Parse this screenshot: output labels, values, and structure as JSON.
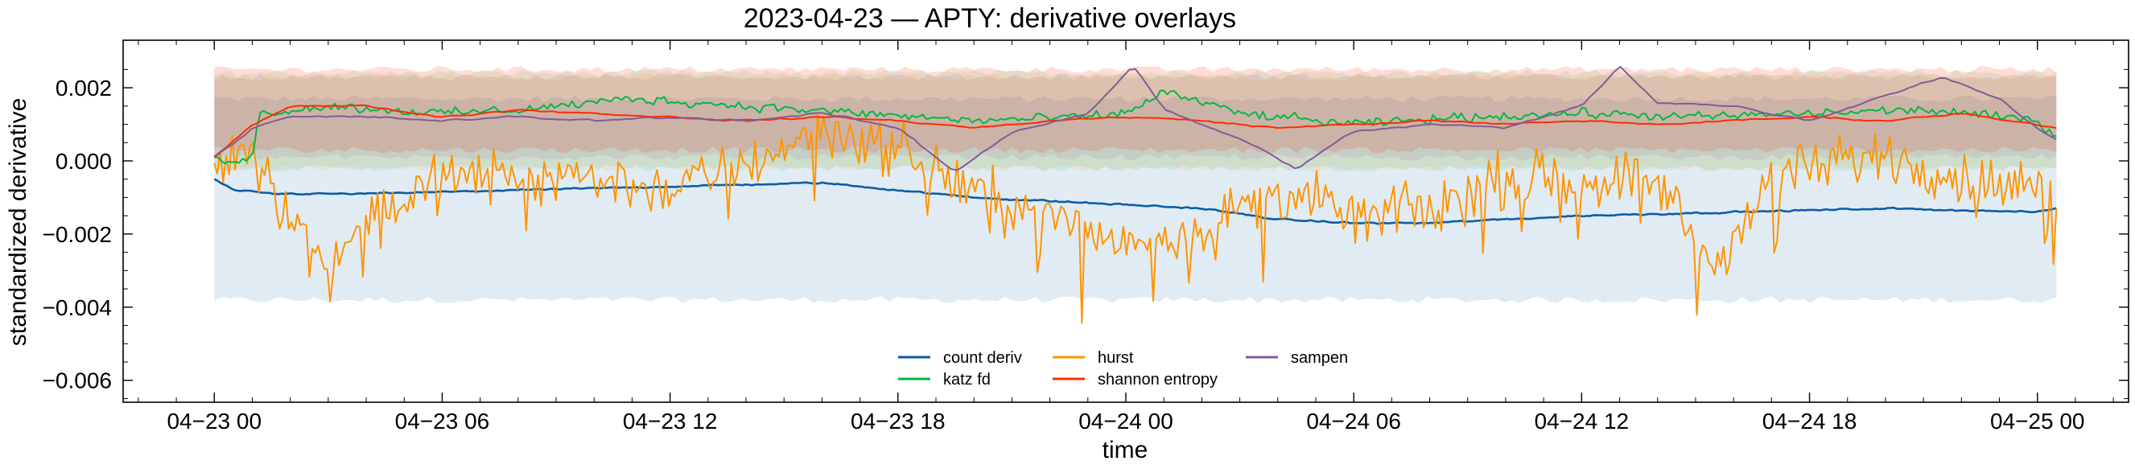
{
  "chart_data": {
    "type": "line",
    "title": "2023-04-23 — APTY: derivative overlays",
    "xlabel": "time",
    "ylabel": "standardized derivative",
    "x_ticks": [
      "04−23 00",
      "04−23 06",
      "04−23 12",
      "04−23 18",
      "04−24 00",
      "04−24 06",
      "04−24 12",
      "04−24 18",
      "04−25 00"
    ],
    "x_range_hours": [
      -2.4,
      50.4
    ],
    "ylim": [
      -0.0066,
      0.0033
    ],
    "y_ticks": [
      {
        "value": 0.002,
        "label": "0.002"
      },
      {
        "value": 0.0,
        "label": "0.000"
      },
      {
        "value": -0.002,
        "label": "−0.002"
      },
      {
        "value": -0.004,
        "label": "−0.004"
      },
      {
        "value": -0.006,
        "label": "−0.006"
      }
    ],
    "legend_position": "lower-center",
    "series": [
      {
        "name": "count deriv",
        "color": "#0C5DA5",
        "band": [
          -0.0038,
          0.0017
        ],
        "anchors": [
          [
            0,
            -0.0005
          ],
          [
            0.5,
            -0.0008
          ],
          [
            1.5,
            -0.0009
          ],
          [
            4,
            -0.0009
          ],
          [
            8,
            -0.0008
          ],
          [
            12,
            -0.0007
          ],
          [
            16,
            -0.0006
          ],
          [
            18,
            -0.0008
          ],
          [
            20,
            -0.001
          ],
          [
            22,
            -0.0011
          ],
          [
            24,
            -0.0012
          ],
          [
            26,
            -0.0013
          ],
          [
            28,
            -0.0016
          ],
          [
            30,
            -0.0017
          ],
          [
            32,
            -0.0017
          ],
          [
            36,
            -0.0015
          ],
          [
            40,
            -0.0014
          ],
          [
            44,
            -0.0013
          ],
          [
            48,
            -0.0014
          ],
          [
            48.5,
            -0.0013
          ]
        ]
      },
      {
        "name": "katz fd",
        "color": "#00B945",
        "band": [
          -0.0002,
          0.0024
        ],
        "anchors": [
          [
            0,
            0
          ],
          [
            1,
            0.0001
          ],
          [
            1.2,
            0.0013
          ],
          [
            3,
            0.0015
          ],
          [
            6,
            0.0013
          ],
          [
            8,
            0.0014
          ],
          [
            11,
            0.0017
          ],
          [
            14,
            0.0015
          ],
          [
            17,
            0.0013
          ],
          [
            20,
            0.0011
          ],
          [
            23,
            0.0012
          ],
          [
            24,
            0.0013
          ],
          [
            25,
            0.0019
          ],
          [
            27,
            0.0013
          ],
          [
            30,
            0.001
          ],
          [
            33,
            0.0012
          ],
          [
            36,
            0.0013
          ],
          [
            39,
            0.0012
          ],
          [
            42,
            0.0013
          ],
          [
            45,
            0.0014
          ],
          [
            48,
            0.0011
          ],
          [
            48.5,
            0.0007
          ]
        ]
      },
      {
        "name": "hurst",
        "color": "#FF9500",
        "band": [
          -0.0002,
          0.0023
        ],
        "anchors": [
          [
            0,
            0
          ],
          [
            1,
            0.0005
          ],
          [
            2,
            -0.0015
          ],
          [
            3,
            -0.003
          ],
          [
            4,
            -0.0015
          ],
          [
            6,
            -0.0005
          ],
          [
            9,
            -0.0003
          ],
          [
            12,
            -0.0008
          ],
          [
            14,
            -0.0001
          ],
          [
            16,
            0.0009
          ],
          [
            18,
            0.0003
          ],
          [
            20,
            -0.0008
          ],
          [
            22,
            -0.0016
          ],
          [
            24,
            -0.0022
          ],
          [
            26,
            -0.0018
          ],
          [
            28,
            -0.0008
          ],
          [
            30,
            -0.0015
          ],
          [
            32,
            -0.0013
          ],
          [
            34,
            -0.0005
          ],
          [
            36,
            -0.0005
          ],
          [
            38,
            -0.0005
          ],
          [
            39.5,
            -0.003
          ],
          [
            41,
            -0.0005
          ],
          [
            44,
            0.0002
          ],
          [
            46,
            -0.0005
          ],
          [
            48,
            -0.0008
          ],
          [
            48.5,
            -0.001
          ]
        ]
      },
      {
        "name": "shannon entropy",
        "color": "#FF2C00",
        "band": [
          0.0003,
          0.0025
        ],
        "anchors": [
          [
            0,
            0.0001
          ],
          [
            1,
            0.001
          ],
          [
            2,
            0.0015
          ],
          [
            4,
            0.0015
          ],
          [
            6,
            0.0012
          ],
          [
            8,
            0.0014
          ],
          [
            10,
            0.0013
          ],
          [
            12,
            0.0012
          ],
          [
            14,
            0.0011
          ],
          [
            16,
            0.0012
          ],
          [
            18,
            0.0011
          ],
          [
            20,
            0.0009
          ],
          [
            22,
            0.0011
          ],
          [
            24,
            0.0012
          ],
          [
            26,
            0.0011
          ],
          [
            28,
            0.0009
          ],
          [
            30,
            0.001
          ],
          [
            32,
            0.0011
          ],
          [
            34,
            0.001
          ],
          [
            36,
            0.0011
          ],
          [
            38,
            0.001
          ],
          [
            40,
            0.0011
          ],
          [
            42,
            0.0012
          ],
          [
            44,
            0.0011
          ],
          [
            46,
            0.0013
          ],
          [
            48,
            0.001
          ],
          [
            48.5,
            0.0009
          ]
        ]
      },
      {
        "name": "sampen",
        "color": "#845B97",
        "band": [
          0.0001,
          0.0023
        ],
        "anchors": [
          [
            0,
            0.0001
          ],
          [
            1,
            0.0009
          ],
          [
            2,
            0.0012
          ],
          [
            4,
            0.0012
          ],
          [
            6,
            0.0011
          ],
          [
            8,
            0.0012
          ],
          [
            10,
            0.0011
          ],
          [
            12,
            0.0012
          ],
          [
            14,
            0.0011
          ],
          [
            16,
            0.0013
          ],
          [
            18,
            0.0009
          ],
          [
            19.5,
            -0.0003
          ],
          [
            21,
            0.0008
          ],
          [
            23,
            0.0013
          ],
          [
            24.2,
            0.0026
          ],
          [
            25,
            0.0014
          ],
          [
            27,
            0.0006
          ],
          [
            28.5,
            -0.0002
          ],
          [
            30,
            0.0008
          ],
          [
            32,
            0.001
          ],
          [
            34,
            0.0009
          ],
          [
            36,
            0.0015
          ],
          [
            37,
            0.0026
          ],
          [
            38,
            0.0016
          ],
          [
            40,
            0.0015
          ],
          [
            42,
            0.0011
          ],
          [
            44,
            0.0018
          ],
          [
            45.5,
            0.0023
          ],
          [
            47,
            0.0017
          ],
          [
            48,
            0.0009
          ],
          [
            48.5,
            0.0006
          ]
        ]
      }
    ]
  }
}
